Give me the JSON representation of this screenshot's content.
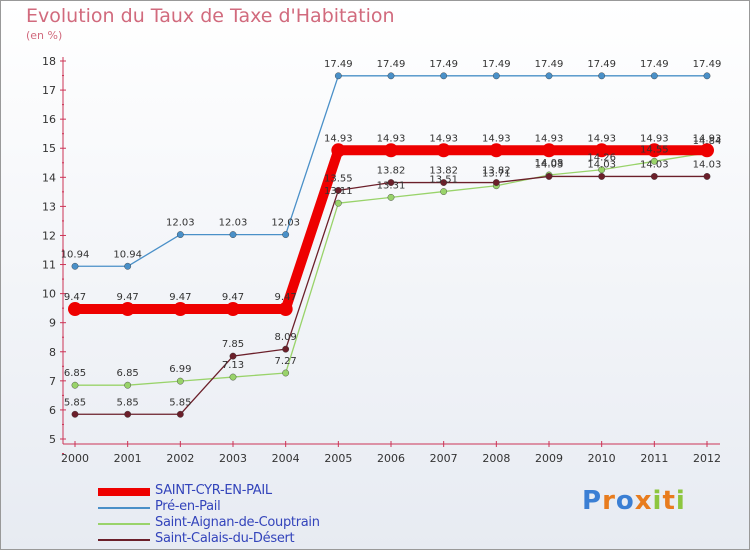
{
  "header": {
    "title": "Evolution du Taux de Taxe d'Habitation",
    "subtitle": "(en %)"
  },
  "chart_data": {
    "type": "line",
    "title": "Evolution du Taux de Taxe d'Habitation",
    "ylabel": "(en %)",
    "xlabel": "",
    "ylim": [
      5,
      18
    ],
    "yticks": [
      "5",
      "6",
      "7",
      "8",
      "9",
      "10",
      "11",
      "12",
      "13",
      "14",
      "15",
      "16",
      "17",
      "18"
    ],
    "categories": [
      "2000",
      "2001",
      "2002",
      "2003",
      "2004",
      "2005",
      "2006",
      "2007",
      "2008",
      "2009",
      "2010",
      "2011",
      "2012"
    ],
    "grid": false,
    "legend": "bottom-left",
    "series": [
      {
        "name": "Pré-en-Pail",
        "color": "#4a90c8",
        "values": [
          10.94,
          10.94,
          12.03,
          12.03,
          12.03,
          17.49,
          17.49,
          17.49,
          17.49,
          17.49,
          17.49,
          17.49,
          17.49
        ],
        "labels": [
          "10.94",
          "10.94",
          "12.03",
          "12.03",
          "12.03",
          "17.49",
          "17.49",
          "17.49",
          "17.49",
          "17.49",
          "17.49",
          "17.49",
          "17.49"
        ]
      },
      {
        "name": "Saint-Aignan-de-Couptrain",
        "color": "#99d36a",
        "values": [
          6.85,
          6.85,
          6.99,
          7.13,
          7.27,
          13.11,
          13.31,
          13.51,
          13.71,
          14.08,
          14.26,
          14.55,
          14.84
        ],
        "labels": [
          "6.85",
          "6.85",
          "6.99",
          "7.13",
          "7.27",
          "13.11",
          "13.31",
          "13.51",
          "13.71",
          "14.08",
          "14.26",
          "14.55",
          "14.84"
        ]
      },
      {
        "name": "Saint-Calais-du-Désert",
        "color": "#6b1f2a",
        "values": [
          5.85,
          5.85,
          5.85,
          7.85,
          8.09,
          13.55,
          13.82,
          13.82,
          13.82,
          14.03,
          14.03,
          14.03,
          14.03
        ],
        "labels": [
          "5.85",
          "5.85",
          "5.85",
          "7.85",
          "8.09",
          "13.55",
          "13.82",
          "13.82",
          "13.82",
          "14.03",
          "14.03",
          "14.03",
          "14.03"
        ]
      },
      {
        "name": "SAINT-CYR-EN-PAIL",
        "color": "#ee0000",
        "emphasis": true,
        "values": [
          9.47,
          9.47,
          9.47,
          9.47,
          9.47,
          14.93,
          14.93,
          14.93,
          14.93,
          14.93,
          14.93,
          14.93,
          14.93
        ],
        "labels": [
          "9.47",
          "9.47",
          "9.47",
          "9.47",
          "9.47",
          "14.93",
          "14.93",
          "14.93",
          "14.93",
          "14.93",
          "14.93",
          "14.93",
          "14.93"
        ]
      }
    ]
  },
  "legend": {
    "items": [
      {
        "label": "SAINT-CYR-EN-PAIL",
        "color": "#ee0000"
      },
      {
        "label": "Pré-en-Pail",
        "color": "#4a90c8"
      },
      {
        "label": "Saint-Aignan-de-Couptrain",
        "color": "#99d36a"
      },
      {
        "label": "Saint-Calais-du-Désert",
        "color": "#6b1f2a"
      }
    ]
  },
  "logo": {
    "letters": [
      "P",
      "r",
      "o",
      "x",
      "i",
      "t",
      "i"
    ],
    "colors": [
      "#3b7fd4",
      "#e87c1e",
      "#3b7fd4",
      "#e87c1e",
      "#8dc63f",
      "#e87c1e",
      "#8dc63f"
    ]
  }
}
